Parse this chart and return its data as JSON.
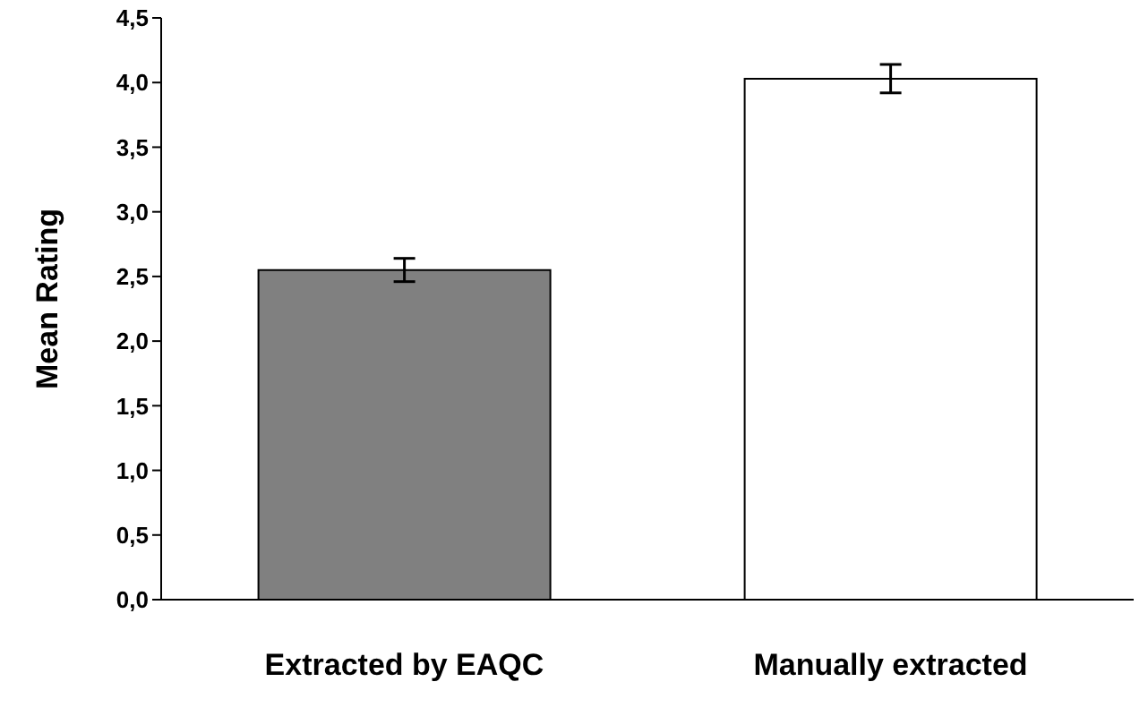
{
  "chart_data": {
    "type": "bar",
    "ylabel": "Mean Rating",
    "categories": [
      "Extracted by EAQC",
      "Manually extracted"
    ],
    "values": [
      2.55,
      4.03
    ],
    "errors": [
      0.09,
      0.11
    ],
    "colors": [
      "#808080",
      "#ffffff"
    ],
    "ylim": [
      0,
      4.5
    ],
    "yticks": [
      {
        "value": 0,
        "label": "0,0"
      },
      {
        "value": 0.5,
        "label": "0,5"
      },
      {
        "value": 1,
        "label": "1,0"
      },
      {
        "value": 1.5,
        "label": "1,5"
      },
      {
        "value": 2,
        "label": "2,0"
      },
      {
        "value": 2.5,
        "label": "2,5"
      },
      {
        "value": 3,
        "label": "3,0"
      },
      {
        "value": 3.5,
        "label": "3,5"
      },
      {
        "value": 4,
        "label": "4,0"
      },
      {
        "value": 4.5,
        "label": "4,5"
      }
    ],
    "grid": false,
    "legend": false
  }
}
